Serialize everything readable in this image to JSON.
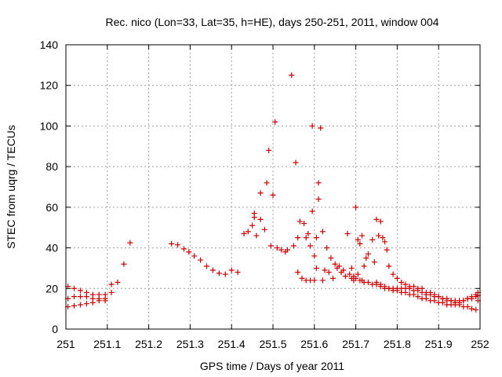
{
  "chart_data": {
    "type": "scatter",
    "title": "Rec. nico (Lon=33, Lat=35, h=HE), days 250-251, 2011, window 004",
    "xlabel": "GPS time / Days of year 2011",
    "ylabel": "STEC from uqrg / TECUs",
    "xlim": [
      251,
      252
    ],
    "ylim": [
      0,
      140
    ],
    "xticks": [
      251,
      251.1,
      251.2,
      251.3,
      251.4,
      251.5,
      251.6,
      251.7,
      251.8,
      251.9,
      252
    ],
    "xtick_labels": [
      "251",
      "251.1",
      "251.2",
      "251.3",
      "251.4",
      "251.5",
      "251.6",
      "251.7",
      "251.8",
      "251.9",
      "252"
    ],
    "yticks": [
      0,
      20,
      40,
      60,
      80,
      100,
      120,
      140
    ],
    "ytick_labels": [
      "0",
      "20",
      "40",
      "60",
      "80",
      "100",
      "120",
      "140"
    ],
    "grid": true,
    "marker": "plus",
    "color": "#cc0000",
    "x": [
      251.005,
      251.005,
      251.005,
      251.02,
      251.02,
      251.02,
      251.035,
      251.035,
      251.035,
      251.05,
      251.05,
      251.05,
      251.065,
      251.065,
      251.065,
      251.08,
      251.08,
      251.08,
      251.095,
      251.095,
      251.095,
      251.11,
      251.11,
      251.125,
      251.14,
      251.155,
      251.255,
      251.27,
      251.285,
      251.297,
      251.31,
      251.325,
      251.34,
      251.355,
      251.37,
      251.385,
      251.4,
      251.415,
      251.43,
      251.44,
      251.45,
      251.455,
      251.455,
      251.46,
      251.47,
      251.47,
      251.48,
      251.485,
      251.49,
      251.495,
      251.5,
      251.505,
      251.51,
      251.52,
      251.53,
      251.535,
      251.545,
      251.55,
      251.555,
      251.56,
      251.56,
      251.565,
      251.57,
      251.575,
      251.58,
      251.58,
      251.585,
      251.59,
      251.59,
      251.595,
      251.595,
      251.6,
      251.6,
      251.605,
      251.605,
      251.61,
      251.61,
      251.615,
      251.62,
      251.62,
      251.625,
      251.63,
      251.635,
      251.64,
      251.645,
      251.65,
      251.655,
      251.66,
      251.665,
      251.67,
      251.675,
      251.68,
      251.685,
      251.69,
      251.695,
      251.7,
      251.705,
      251.71,
      251.715,
      251.72,
      251.725,
      251.73,
      251.74,
      251.745,
      251.75,
      251.755,
      251.76,
      251.765,
      251.77,
      251.775,
      251.69,
      251.695,
      251.7,
      251.705,
      251.71,
      251.715,
      251.72,
      251.73,
      251.74,
      251.75,
      251.76,
      251.77,
      251.78,
      251.79,
      251.8,
      251.81,
      251.82,
      251.83,
      251.84,
      251.85,
      251.86,
      251.87,
      251.88,
      251.89,
      251.9,
      251.91,
      251.92,
      251.93,
      251.94,
      251.95,
      251.96,
      251.97,
      251.98,
      251.99,
      251.75,
      251.76,
      251.77,
      251.78,
      251.79,
      251.8,
      251.81,
      251.82,
      251.83,
      251.84,
      251.85,
      251.86,
      251.87,
      251.88,
      251.89,
      251.9,
      251.91,
      251.92,
      251.93,
      251.94,
      251.95,
      251.96,
      251.97,
      251.98,
      251.99,
      251.78,
      251.79,
      251.8,
      251.81,
      251.82,
      251.83,
      251.84,
      251.85,
      251.86,
      251.87,
      251.88,
      251.89,
      251.9,
      251.91,
      251.92,
      251.93,
      251.94,
      251.95,
      251.96,
      251.97,
      251.98,
      251.99,
      251.995,
      251.995,
      251.995
    ],
    "y": [
      21,
      15,
      11,
      20,
      16,
      11.5,
      19,
      16,
      12,
      18,
      16,
      12.5,
      17,
      15,
      13,
      17,
      15,
      14,
      17,
      15,
      14,
      22,
      18,
      23,
      32,
      42.5,
      42,
      41.5,
      39.5,
      38,
      36,
      34,
      31,
      29,
      27.5,
      27,
      29,
      28,
      47,
      48,
      51,
      55,
      57,
      46,
      54,
      67,
      49,
      72,
      88,
      41,
      66,
      102,
      40,
      39,
      38,
      39,
      125,
      41,
      82,
      45,
      28,
      53,
      25,
      52,
      24,
      45,
      47,
      24,
      41,
      58,
      100,
      36,
      24,
      45,
      30,
      64,
      72,
      99,
      48,
      24,
      29,
      40,
      28,
      35,
      25,
      32,
      30,
      31,
      28,
      29,
      26,
      47,
      27,
      30,
      26,
      60,
      44,
      42,
      46,
      31,
      35,
      37,
      44,
      33,
      54,
      46,
      53,
      45,
      43,
      39,
      25,
      24,
      25,
      27,
      24,
      24,
      23,
      23,
      22,
      22,
      21,
      20,
      20,
      19,
      19,
      18,
      18,
      17,
      17,
      16,
      15,
      15,
      14,
      14,
      13,
      13,
      12,
      12,
      12,
      12,
      11,
      11,
      10,
      9.5,
      23,
      22,
      21,
      20,
      20,
      20,
      20,
      20,
      20,
      19,
      19,
      18,
      17,
      17,
      16,
      16,
      15,
      15,
      14,
      14,
      14,
      14,
      15,
      15,
      16,
      31,
      27,
      25,
      23,
      22,
      21,
      21,
      20,
      20,
      18,
      18,
      17,
      16,
      15,
      14,
      14,
      13,
      13,
      14,
      15,
      16,
      17,
      18,
      16.5,
      14
    ]
  }
}
